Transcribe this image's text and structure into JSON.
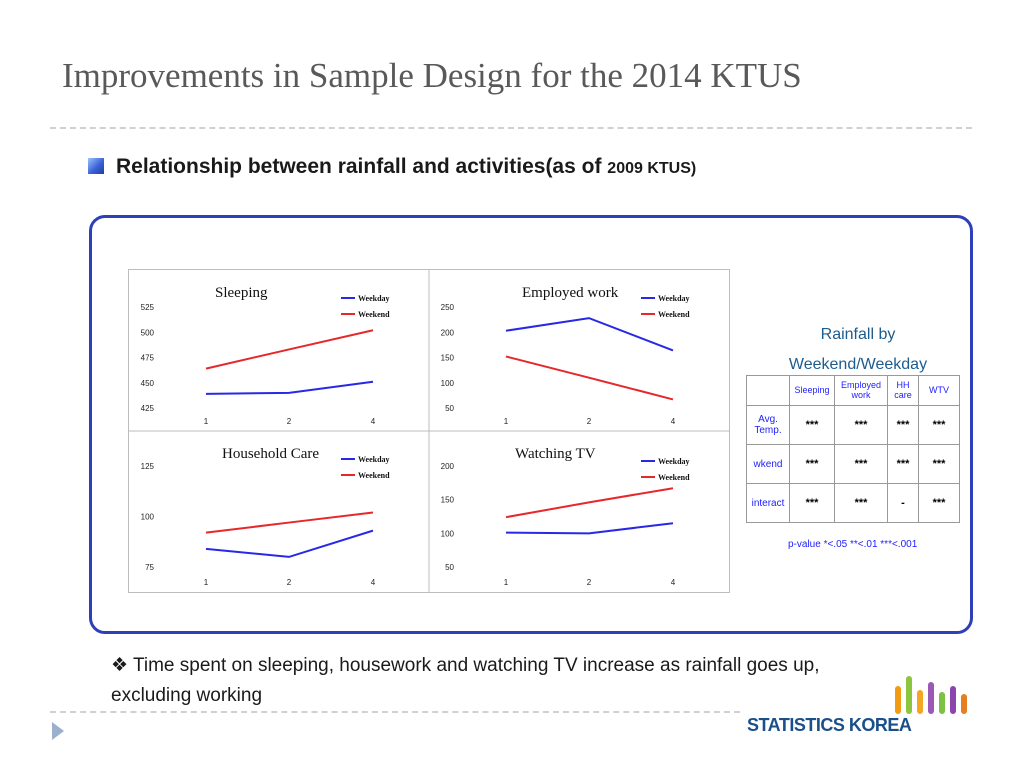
{
  "page": {
    "title": "Improvements in Sample Design for the 2014 KTUS",
    "subheading": "Relationship between rainfall  and activities(as of",
    "subheading_small": "2009 KTUS",
    "subheading_close": ")",
    "note_symbol": "❖",
    "note": "Time spent on sleeping, housework and watching TV increase as rainfall goes up, excluding working",
    "logo_text": "STATISTICS KOREA"
  },
  "colors": {
    "weekday": "#2828e6",
    "weekend": "#e6282a",
    "frame": "#2e3fb8",
    "heading_blue": "#1d5c8e"
  },
  "chart_data": [
    {
      "type": "line",
      "title": "Sleeping",
      "x": [
        "1",
        "2",
        "4"
      ],
      "ylim": [
        425,
        525
      ],
      "yticks": [
        425,
        450,
        475,
        500,
        525
      ],
      "series": [
        {
          "name": "Weekday",
          "values": [
            439,
            440,
            451
          ]
        },
        {
          "name": "Weekend",
          "values": [
            464,
            483,
            502
          ]
        }
      ]
    },
    {
      "type": "line",
      "title": "Employed work",
      "x": [
        "1",
        "2",
        "4"
      ],
      "ylim": [
        50,
        250
      ],
      "yticks": [
        50,
        100,
        150,
        200,
        250
      ],
      "series": [
        {
          "name": "Weekday",
          "values": [
            203,
            228,
            164
          ]
        },
        {
          "name": "Weekend",
          "values": [
            152,
            110,
            67
          ]
        }
      ]
    },
    {
      "type": "line",
      "title": "Household Care",
      "x": [
        "1",
        "2",
        "4"
      ],
      "ylim": [
        75,
        125
      ],
      "yticks": [
        75,
        100,
        125
      ],
      "series": [
        {
          "name": "Weekday",
          "values": [
            84,
            80,
            93
          ]
        },
        {
          "name": "Weekend",
          "values": [
            92,
            97,
            102
          ]
        }
      ]
    },
    {
      "type": "line",
      "title": "Watching TV",
      "x": [
        "1",
        "2",
        "4"
      ],
      "ylim": [
        50,
        200
      ],
      "yticks": [
        50,
        100,
        150,
        200
      ],
      "series": [
        {
          "name": "Weekday",
          "values": [
            101,
            100,
            115
          ]
        },
        {
          "name": "Weekend",
          "values": [
            124,
            146,
            167
          ]
        }
      ]
    }
  ],
  "rainfall_table": {
    "title_line1": "Rainfall by",
    "title_line2": "Weekend/Weekday",
    "columns": [
      "Sleeping",
      "Employed work",
      "HH care",
      "WTV"
    ],
    "rows": [
      {
        "label": "Avg. Temp.",
        "values": [
          "***",
          "***",
          "***",
          "***"
        ]
      },
      {
        "label": "wkend",
        "values": [
          "***",
          "***",
          "***",
          "***"
        ]
      },
      {
        "label": "interact",
        "values": [
          "***",
          "***",
          "-",
          "***"
        ]
      }
    ],
    "pvalue_note": "p-value *<.05 **<.01 ***<.001"
  }
}
